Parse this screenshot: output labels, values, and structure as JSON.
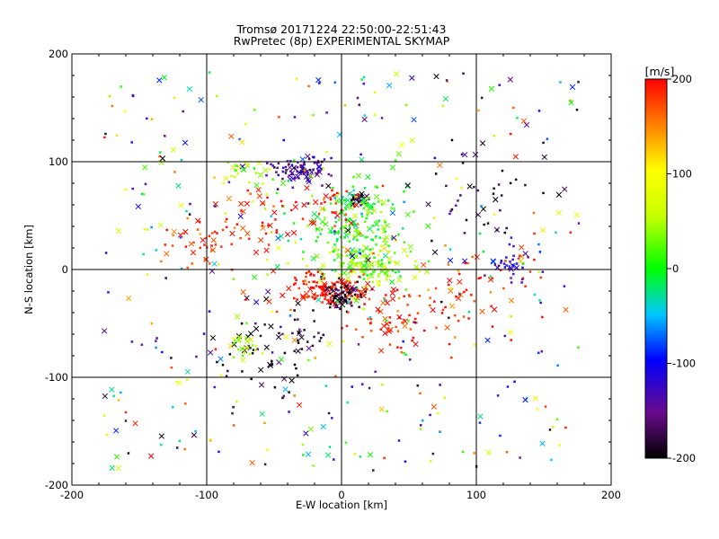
{
  "chart_data": {
    "type": "scatter",
    "title": "Tromsø 20171224 22:50:00-22:51:43",
    "subtitle": "RwPretec (8p) EXPERIMENTAL SKYMAP",
    "xlabel": "E-W location [km]",
    "ylabel": "N-S location [km]",
    "xlim": [
      -200,
      200
    ],
    "ylim": [
      -200,
      200
    ],
    "xticks": [
      "-200",
      "-100",
      "0",
      "100",
      "200"
    ],
    "yticks": [
      "-200",
      "-100",
      "0",
      "100",
      "200"
    ],
    "grid": true,
    "marker": "x",
    "colorbar": {
      "label": "[m/s]",
      "min": -200,
      "max": 200,
      "ticks": [
        "-200",
        "-100",
        "0",
        "100",
        "200"
      ],
      "placement": "right"
    },
    "clusters": [
      {
        "x": -30,
        "y": 92,
        "spread": [
          12,
          6
        ],
        "value": -150,
        "count": 90
      },
      {
        "x": 12,
        "y": 66,
        "spread": [
          4,
          4
        ],
        "value": -195,
        "count": 30
      },
      {
        "x": 10,
        "y": 40,
        "spread": [
          20,
          22
        ],
        "value": 10,
        "count": 220
      },
      {
        "x": 22,
        "y": 5,
        "spread": [
          16,
          10
        ],
        "value": 40,
        "count": 110
      },
      {
        "x": -8,
        "y": -18,
        "spread": [
          14,
          8
        ],
        "value": 195,
        "count": 120
      },
      {
        "x": 0,
        "y": -25,
        "spread": [
          8,
          6
        ],
        "value": -195,
        "count": 60
      },
      {
        "x": 40,
        "y": -45,
        "spread": [
          18,
          14
        ],
        "value": 195,
        "count": 70
      },
      {
        "x": -50,
        "y": -70,
        "spread": [
          20,
          20
        ],
        "value": -190,
        "count": 70
      },
      {
        "x": -70,
        "y": -70,
        "spread": [
          10,
          8
        ],
        "value": 50,
        "count": 20
      },
      {
        "x": -100,
        "y": 25,
        "spread": [
          18,
          12
        ],
        "value": 190,
        "count": 40
      },
      {
        "x": -60,
        "y": 50,
        "spread": [
          18,
          16
        ],
        "value": 195,
        "count": 45
      },
      {
        "x": 125,
        "y": 5,
        "spread": [
          10,
          7
        ],
        "value": -130,
        "count": 35
      },
      {
        "x": 105,
        "y": -15,
        "spread": [
          30,
          20
        ],
        "value": 190,
        "count": 50
      },
      {
        "x": 110,
        "y": 60,
        "spread": [
          25,
          30
        ],
        "value": -190,
        "count": 40
      },
      {
        "x": -70,
        "y": 90,
        "spread": [
          10,
          6
        ],
        "value": 40,
        "count": 25
      },
      {
        "x": -5,
        "y": 60,
        "spread": [
          12,
          10
        ],
        "value": 195,
        "count": 30
      },
      {
        "x": 0,
        "y": 0,
        "spread": [
          110,
          110
        ],
        "value": null,
        "count": 420
      }
    ]
  }
}
